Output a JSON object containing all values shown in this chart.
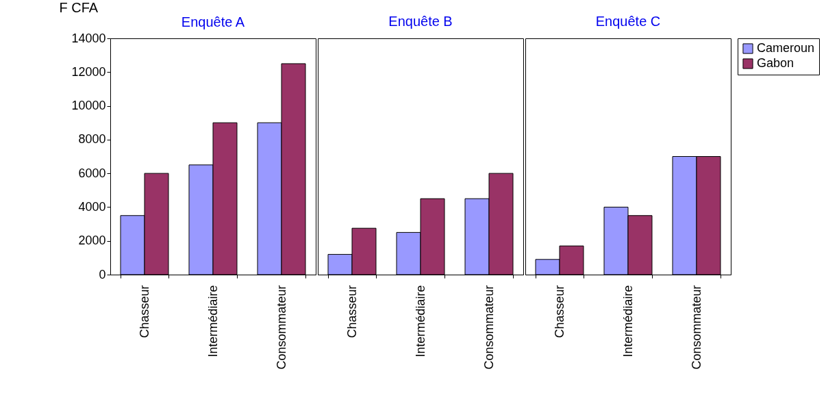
{
  "chart_data": [
    {
      "type": "bar",
      "title": "Enquête A",
      "ylabel": "F CFA",
      "categories": [
        "Chasseur",
        "Intermédiaire",
        "Consommateur"
      ],
      "ylim": [
        0,
        14000
      ],
      "yticks": [
        0,
        2000,
        4000,
        6000,
        8000,
        10000,
        12000,
        14000
      ],
      "grid": false,
      "legend": false,
      "series": [
        {
          "color": "#9999ff",
          "values": [
            3500,
            6500,
            9000
          ]
        },
        {
          "color": "#993366",
          "values": [
            6000,
            9000,
            12500
          ]
        }
      ]
    },
    {
      "type": "bar",
      "title": "Enquête B",
      "categories": [
        "Chasseur",
        "Intermédiaire",
        "Consommateur"
      ],
      "ylim": [
        0,
        14000
      ],
      "tick_labels": "x",
      "grid": false,
      "legend": false,
      "series": [
        {
          "color": "#9999ff",
          "values": [
            1200,
            2500,
            4500
          ]
        },
        {
          "color": "#993366",
          "values": [
            2750,
            4500,
            6000
          ]
        }
      ]
    },
    {
      "type": "bar",
      "title": "Enquête C",
      "categories": [
        "Chasseur",
        "Intermédiaire",
        "Consommateur"
      ],
      "ylim": [
        0,
        14000
      ],
      "tick_labels": "x",
      "grid": false,
      "legend": "right",
      "series": [
        {
          "name": "Cameroun",
          "color": "#9999ff",
          "values": [
            900,
            4000,
            7000
          ]
        },
        {
          "name": "Gabon",
          "color": "#993366",
          "values": [
            1700,
            3500,
            7000
          ]
        }
      ]
    }
  ]
}
